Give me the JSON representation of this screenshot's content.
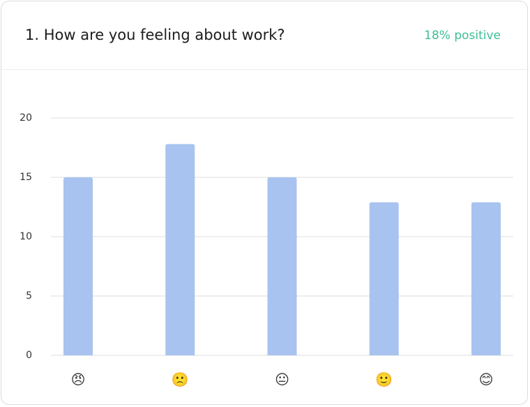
{
  "header": {
    "number": "1.",
    "question": "How are you feeling about work?",
    "summary": "18% positive"
  },
  "chart_data": {
    "type": "bar",
    "categories": [
      "😠",
      "🙁",
      "😐",
      "🙂",
      "😊"
    ],
    "values": [
      15,
      17.8,
      15,
      12.9,
      12.9
    ],
    "color": "#a8c3ef",
    "ylim": [
      0,
      20
    ],
    "yticks": [
      0,
      5,
      10,
      15,
      20
    ],
    "grid": true
  }
}
